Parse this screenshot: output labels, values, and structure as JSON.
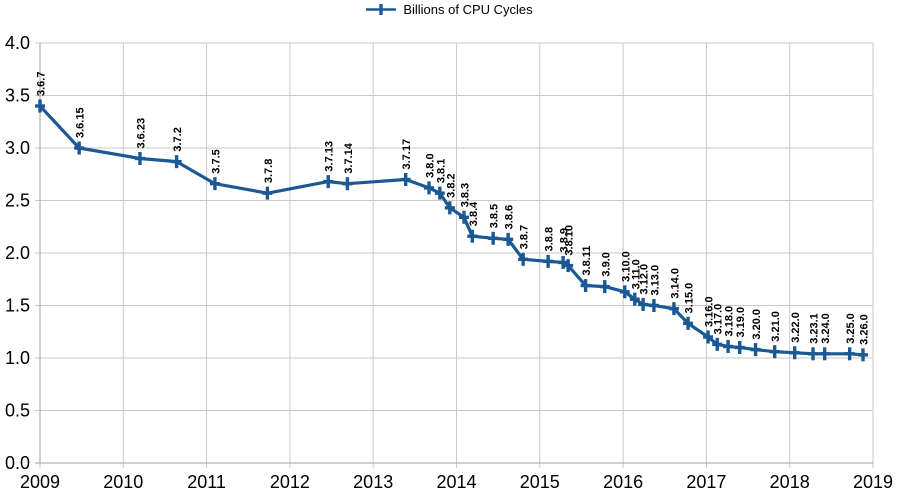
{
  "chart_data": {
    "type": "line",
    "title": "",
    "legend_label": "Billions of CPU Cycles",
    "legend_position": "top-center",
    "grid": true,
    "x_axis": {
      "range": [
        2009,
        2019
      ],
      "ticks": [
        {
          "value": 2009,
          "label": "2009"
        },
        {
          "value": 2010,
          "label": "2010"
        },
        {
          "value": 2011,
          "label": "2011"
        },
        {
          "value": 2012,
          "label": "2012"
        },
        {
          "value": 2013,
          "label": "2013"
        },
        {
          "value": 2014,
          "label": "2014"
        },
        {
          "value": 2015,
          "label": "2015"
        },
        {
          "value": 2016,
          "label": "2016"
        },
        {
          "value": 2017,
          "label": "2017"
        },
        {
          "value": 2018,
          "label": "2018"
        },
        {
          "value": 2019,
          "label": "2019"
        }
      ]
    },
    "y_axis": {
      "range": [
        0,
        4
      ],
      "ticks": [
        {
          "value": 0.0,
          "label": "0.0"
        },
        {
          "value": 0.5,
          "label": "0.5"
        },
        {
          "value": 1.0,
          "label": "1.0"
        },
        {
          "value": 1.5,
          "label": "1.5"
        },
        {
          "value": 2.0,
          "label": "2.0"
        },
        {
          "value": 2.5,
          "label": "2.5"
        },
        {
          "value": 3.0,
          "label": "3.0"
        },
        {
          "value": 3.5,
          "label": "3.5"
        },
        {
          "value": 4.0,
          "label": "4.0"
        }
      ]
    },
    "colors": {
      "line": "#1b5894",
      "grid": "#c9c9c9",
      "axis": "#a0a0a0",
      "text": "#000000"
    },
    "series": [
      {
        "name": "Billions of CPU Cycles",
        "marker": "plus",
        "points": [
          {
            "label": "3.6.7",
            "x": 2009.0,
            "y": 3.4
          },
          {
            "label": "3.6.15",
            "x": 2009.47,
            "y": 3.0
          },
          {
            "label": "3.6.23",
            "x": 2010.2,
            "y": 2.9
          },
          {
            "label": "3.7.2",
            "x": 2010.64,
            "y": 2.87
          },
          {
            "label": "3.7.5",
            "x": 2011.1,
            "y": 2.66
          },
          {
            "label": "3.7.8",
            "x": 2011.73,
            "y": 2.57
          },
          {
            "label": "3.7.13",
            "x": 2012.46,
            "y": 2.68
          },
          {
            "label": "3.7.14",
            "x": 2012.69,
            "y": 2.66
          },
          {
            "label": "3.7.17",
            "x": 2013.39,
            "y": 2.7
          },
          {
            "label": "3.8.0",
            "x": 2013.67,
            "y": 2.62
          },
          {
            "label": "3.8.1",
            "x": 2013.8,
            "y": 2.57
          },
          {
            "label": "3.8.2",
            "x": 2013.92,
            "y": 2.43
          },
          {
            "label": "3.8.3",
            "x": 2014.09,
            "y": 2.34
          },
          {
            "label": "3.8.4",
            "x": 2014.19,
            "y": 2.16
          },
          {
            "label": "3.8.5",
            "x": 2014.44,
            "y": 2.14
          },
          {
            "label": "3.8.6",
            "x": 2014.62,
            "y": 2.13
          },
          {
            "label": "3.8.7",
            "x": 2014.8,
            "y": 1.94
          },
          {
            "label": "3.8.8",
            "x": 2015.1,
            "y": 1.92
          },
          {
            "label": "3.8.9",
            "x": 2015.28,
            "y": 1.91
          },
          {
            "label": "3.8.10",
            "x": 2015.34,
            "y": 1.88
          },
          {
            "label": "3.8.11",
            "x": 2015.55,
            "y": 1.69
          },
          {
            "label": "3.9.0",
            "x": 2015.78,
            "y": 1.68
          },
          {
            "label": "3.10.0",
            "x": 2016.02,
            "y": 1.63
          },
          {
            "label": "3.11.0",
            "x": 2016.14,
            "y": 1.56
          },
          {
            "label": "3.12.0",
            "x": 2016.24,
            "y": 1.51
          },
          {
            "label": "3.13.0",
            "x": 2016.37,
            "y": 1.5
          },
          {
            "label": "3.14.0",
            "x": 2016.61,
            "y": 1.47
          },
          {
            "label": "3.15.0",
            "x": 2016.78,
            "y": 1.33
          },
          {
            "label": "3.16.0",
            "x": 2017.02,
            "y": 1.2
          },
          {
            "label": "3.17.0",
            "x": 2017.13,
            "y": 1.13
          },
          {
            "label": "3.18.0",
            "x": 2017.26,
            "y": 1.11
          },
          {
            "label": "3.19.0",
            "x": 2017.4,
            "y": 1.1
          },
          {
            "label": "3.20.0",
            "x": 2017.59,
            "y": 1.08
          },
          {
            "label": "3.21.0",
            "x": 2017.82,
            "y": 1.06
          },
          {
            "label": "3.22.0",
            "x": 2018.06,
            "y": 1.05
          },
          {
            "label": "3.23.1",
            "x": 2018.28,
            "y": 1.04
          },
          {
            "label": "3.24.0",
            "x": 2018.42,
            "y": 1.04
          },
          {
            "label": "3.25.0",
            "x": 2018.72,
            "y": 1.04
          },
          {
            "label": "3.26.0",
            "x": 2018.88,
            "y": 1.03
          }
        ]
      }
    ]
  }
}
